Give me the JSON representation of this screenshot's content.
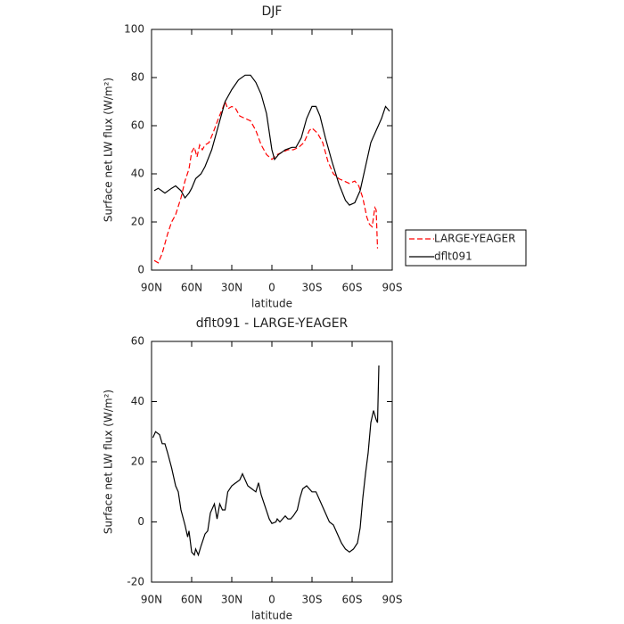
{
  "chart_data": [
    {
      "type": "line",
      "title": "DJF",
      "xlabel": "latitude",
      "ylabel": "Surface net LW flux (W/m²)",
      "xlim": [
        90,
        -90
      ],
      "xticks": [
        {
          "value": 90,
          "label": "90N"
        },
        {
          "value": 60,
          "label": "60N"
        },
        {
          "value": 30,
          "label": "30N"
        },
        0,
        {
          "value": -30,
          "label": "30S"
        },
        {
          "value": -60,
          "label": "60S"
        },
        {
          "value": -90,
          "label": "90S"
        }
      ],
      "ylim": [
        0,
        100
      ],
      "yticks": [
        0,
        20,
        40,
        60,
        80,
        100
      ],
      "grid": false,
      "legend": "right",
      "series": [
        {
          "name": "LARGE-YEAGER",
          "color": "#ff0000",
          "dash": true,
          "x": [
            88,
            85,
            82,
            78,
            75,
            72,
            68,
            65,
            62,
            60,
            58,
            56,
            54,
            52,
            50,
            47,
            44,
            40,
            37,
            35,
            33,
            30,
            27,
            24,
            20,
            16,
            12,
            8,
            4,
            0,
            -4,
            -8,
            -12,
            -16,
            -20,
            -24,
            -28,
            -30,
            -34,
            -38,
            -42,
            -46,
            -50,
            -54,
            -58,
            -62,
            -65,
            -68,
            -71,
            -73,
            -75,
            -77,
            -78,
            -79
          ],
          "values": [
            4,
            3,
            7,
            15,
            20,
            23,
            30,
            37,
            42,
            49,
            51,
            47,
            52,
            50,
            52,
            53,
            57,
            63,
            67,
            70,
            67,
            68,
            67,
            64,
            63,
            62,
            58,
            52,
            48,
            46,
            48,
            49,
            50,
            50,
            51,
            53,
            58,
            59,
            57,
            53,
            45,
            40,
            38,
            37,
            36,
            37,
            35,
            30,
            22,
            19,
            18,
            26,
            25,
            9
          ]
        },
        {
          "name": "dflt091",
          "color": "#000000",
          "dash": false,
          "x": [
            88,
            85,
            80,
            75,
            72,
            68,
            65,
            62,
            60,
            57,
            53,
            50,
            45,
            40,
            35,
            30,
            25,
            20,
            16,
            12,
            8,
            4,
            0,
            -2,
            -5,
            -10,
            -15,
            -18,
            -22,
            -26,
            -30,
            -33,
            -36,
            -40,
            -45,
            -50,
            -55,
            -58,
            -62,
            -66,
            -70,
            -74,
            -78,
            -82,
            -85,
            -88
          ],
          "values": [
            33,
            34,
            32,
            34,
            35,
            33,
            30,
            32,
            34,
            38,
            40,
            43,
            50,
            60,
            70,
            75,
            79,
            81,
            81,
            78,
            73,
            65,
            50,
            46,
            48,
            50,
            51,
            51,
            55,
            63,
            68,
            68,
            64,
            55,
            45,
            36,
            29,
            27,
            28,
            33,
            43,
            53,
            58,
            63,
            68,
            66
          ]
        }
      ]
    },
    {
      "type": "line",
      "title": "dflt091 - LARGE-YEAGER",
      "xlabel": "latitude",
      "ylabel": "Surface net LW flux (W/m²)",
      "xlim": [
        90,
        -90
      ],
      "xticks": [
        {
          "value": 90,
          "label": "90N"
        },
        {
          "value": 60,
          "label": "60N"
        },
        {
          "value": 30,
          "label": "30N"
        },
        0,
        {
          "value": -30,
          "label": "30S"
        },
        {
          "value": -60,
          "label": "60S"
        },
        {
          "value": -90,
          "label": "90S"
        }
      ],
      "ylim": [
        -20,
        60
      ],
      "yticks": [
        -20,
        0,
        20,
        40,
        60
      ],
      "grid": false,
      "series": [
        {
          "color": "#000000",
          "dash": false,
          "x": [
            89,
            87,
            84,
            82,
            80,
            78,
            75,
            72,
            70,
            68,
            65,
            63,
            62,
            60,
            58,
            57,
            55,
            53,
            50,
            48,
            46,
            43,
            41,
            39,
            37,
            35,
            33,
            30,
            27,
            24,
            22,
            20,
            18,
            15,
            12,
            10,
            8,
            5,
            2,
            0,
            -3,
            -4,
            -6,
            -8,
            -10,
            -12,
            -14,
            -16,
            -19,
            -21,
            -23,
            -26,
            -28,
            -30,
            -33,
            -36,
            -40,
            -43,
            -46,
            -49,
            -52,
            -55,
            -58,
            -61,
            -64,
            -66,
            -68,
            -70,
            -72,
            -74,
            -76,
            -78,
            -79,
            -80
          ],
          "values": [
            28,
            30,
            29,
            26,
            26,
            23,
            18,
            12,
            10,
            4,
            -1,
            -5,
            -3,
            -10,
            -11,
            -9,
            -11,
            -8,
            -4,
            -3,
            3,
            6,
            1,
            6,
            4,
            4,
            10,
            12,
            13,
            14,
            16,
            14,
            12,
            11,
            10,
            13,
            9,
            5,
            1,
            -0.5,
            0,
            1,
            0,
            1,
            2,
            1,
            1,
            2,
            4,
            8,
            11,
            12,
            11,
            10,
            10,
            7,
            3,
            0,
            -1,
            -4,
            -7,
            -9,
            -10,
            -9,
            -7,
            -2,
            8,
            16,
            23,
            33,
            37,
            34,
            33,
            52
          ]
        }
      ]
    }
  ]
}
